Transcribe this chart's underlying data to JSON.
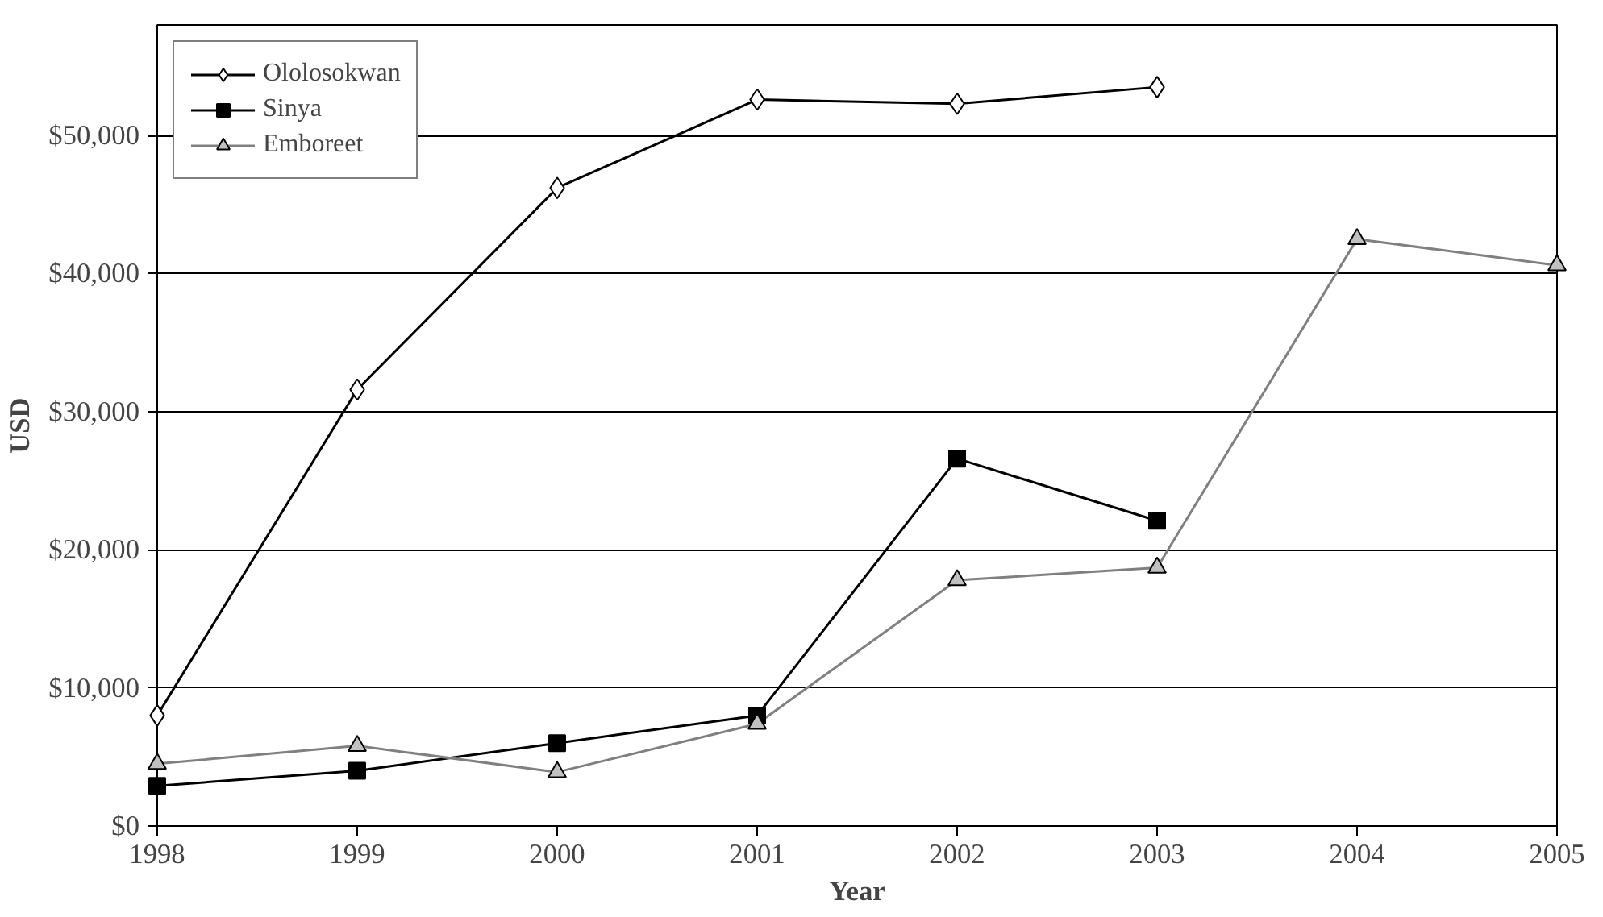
{
  "chart_data": {
    "type": "line",
    "xlabel": "Year",
    "ylabel": "USD",
    "x": [
      1998,
      1999,
      2000,
      2001,
      2002,
      2003,
      2004,
      2005
    ],
    "series": [
      {
        "name": "Ololosokwan",
        "color": "#000000",
        "marker": "diamond",
        "values": [
          8000,
          31600,
          46200,
          52600,
          52300,
          53500,
          null,
          null
        ]
      },
      {
        "name": "Sinya",
        "color": "#000000",
        "marker": "square",
        "values": [
          2900,
          4000,
          6000,
          8000,
          26600,
          22100,
          null,
          null
        ]
      },
      {
        "name": "Emboreet",
        "color": "#808080",
        "marker": "triangle",
        "values": [
          4500,
          5800,
          3900,
          7400,
          17800,
          18700,
          42500,
          40600
        ]
      }
    ],
    "xlim": [
      1998,
      2005
    ],
    "xticks": [
      1998,
      1999,
      2000,
      2001,
      2002,
      2003,
      2004,
      2005
    ],
    "ylim": [
      0,
      58000
    ],
    "yticks": [
      {
        "value": 0,
        "label": "$0"
      },
      {
        "value": 10000,
        "label": "$10,000"
      },
      {
        "value": 20000,
        "label": "$20,000"
      },
      {
        "value": 30000,
        "label": "$30,000"
      },
      {
        "value": 40000,
        "label": "$40,000"
      },
      {
        "value": 50000,
        "label": "$50,000"
      }
    ],
    "grid": "y",
    "legend": "top left",
    "line_style": "solid"
  }
}
